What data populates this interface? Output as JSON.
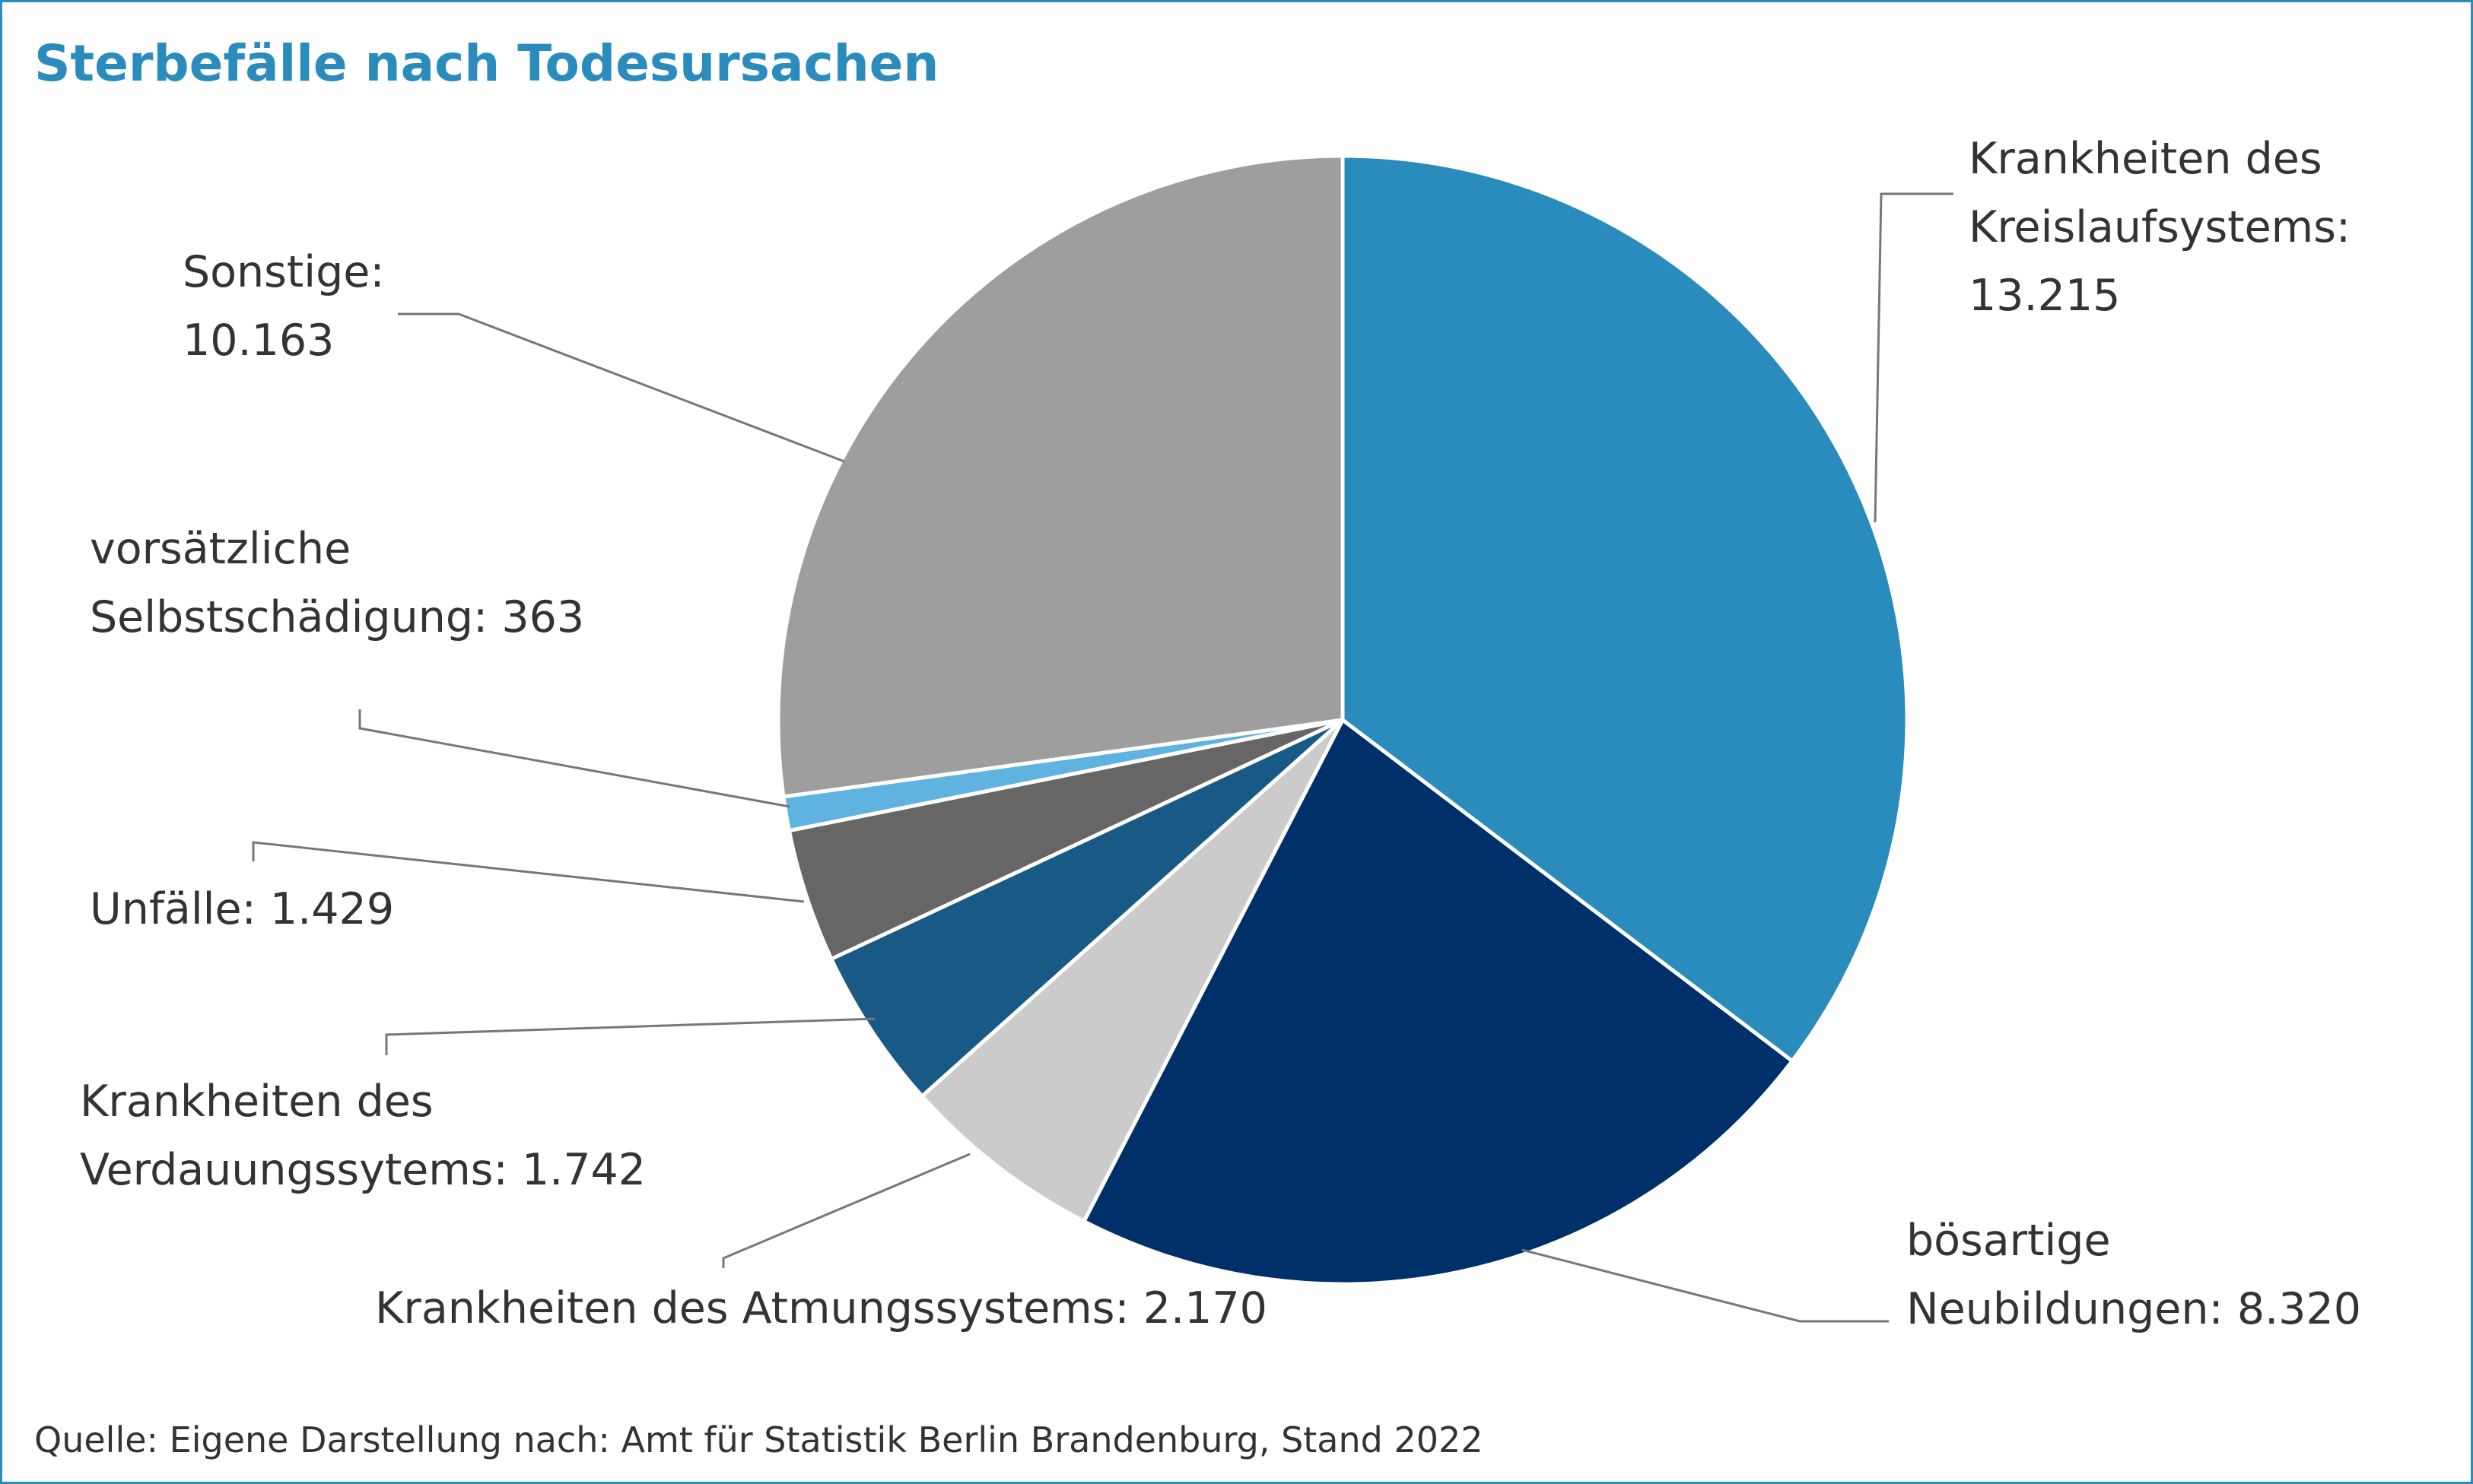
{
  "chart_data": {
    "type": "pie",
    "title": "Sterbefälle nach Todesursachen",
    "slices": [
      {
        "label": "Krankheiten des Kreislaufsystems",
        "value": 13215,
        "value_label": "13.215",
        "color": "#2a8bbd",
        "label_lines": [
          "Krankheiten des",
          "Kreislaufsystems:",
          "13.215"
        ]
      },
      {
        "label": "bösartige Neubildungen",
        "value": 8320,
        "value_label": "8.320",
        "color": "#00306a",
        "label_lines": [
          "bösartige",
          "Neubildungen: 8.320"
        ]
      },
      {
        "label": "Krankheiten des Atmungssystems",
        "value": 2170,
        "value_label": "2.170",
        "color": "#cbcbcb",
        "label_lines": [
          "Krankheiten des Atmungssystems: 2.170"
        ]
      },
      {
        "label": "Krankheiten des Verdauungssytems",
        "value": 1742,
        "value_label": "1.742",
        "color": "#185a85",
        "label_lines": [
          "Krankheiten des",
          "Verdauungssytems: 1.742"
        ]
      },
      {
        "label": "Unfälle",
        "value": 1429,
        "value_label": "1.429",
        "color": "#666666",
        "label_lines": [
          "Unfälle: 1.429"
        ]
      },
      {
        "label": "vorsätzliche Selbstschädigung",
        "value": 363,
        "value_label": "363",
        "color": "#5eb3e0",
        "label_lines": [
          "vorsätzliche",
          "Selbstschädigung: 363"
        ]
      },
      {
        "label": "Sonstige",
        "value": 10163,
        "value_label": "10.163",
        "color": "#9e9e9e",
        "label_lines": [
          "Sonstige:",
          "10.163"
        ]
      }
    ],
    "start_angle": "12 o'clock",
    "direction": "clockwise",
    "leader_color": "#777777",
    "slice_border_color": "#ffffff"
  },
  "source": "Quelle: Eigene Darstellung nach: Amt für Statistik Berlin Brandenburg, Stand 2022",
  "colors": {
    "title": "#2a8bbd",
    "frame": "#2a8bbd",
    "text": "#333333"
  }
}
